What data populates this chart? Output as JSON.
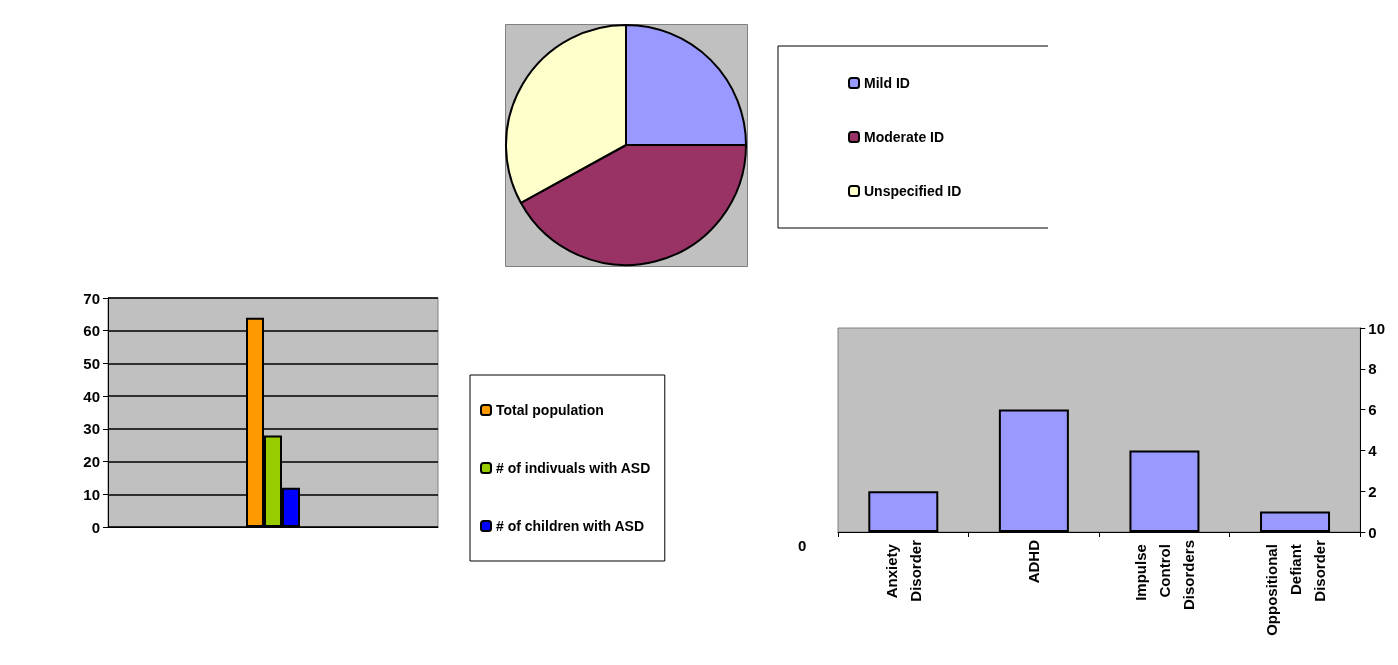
{
  "chart_data": [
    {
      "type": "pie",
      "categories": [
        "Mild ID",
        "Moderate ID",
        "Unspecified ID"
      ],
      "values": [
        25,
        42,
        33
      ],
      "colors": [
        "#9999ff",
        "#993366",
        "#ffffcc"
      ],
      "legend": "right"
    },
    {
      "type": "bar",
      "categories": [
        null
      ],
      "series": [
        {
          "name": "Total population",
          "color": "#ff9900",
          "values": [
            64
          ]
        },
        {
          "name": "# of indivuals with ASD",
          "color": "#99cc00",
          "values": [
            28
          ]
        },
        {
          "name": "# of children with ASD",
          "color": "#0000ff",
          "values": [
            12
          ]
        }
      ],
      "ylim": [
        0,
        70
      ],
      "yticks": [
        0,
        10,
        20,
        30,
        40,
        50,
        60,
        70
      ],
      "grid": "y",
      "legend": "right"
    },
    {
      "type": "bar",
      "categories": [
        "Anxiety Disorder",
        "ADHD",
        "Impulse Control Disorders",
        "Oppositional Defiant Disorder"
      ],
      "series": [
        {
          "color": "#9999ff",
          "values": [
            2,
            6,
            4,
            1
          ],
          "axis": "y2"
        }
      ],
      "y2lim": [
        0,
        10
      ],
      "y2ticks": [
        0,
        2,
        4,
        6,
        8,
        10
      ],
      "grid": false,
      "annotations": [
        "0"
      ]
    }
  ]
}
